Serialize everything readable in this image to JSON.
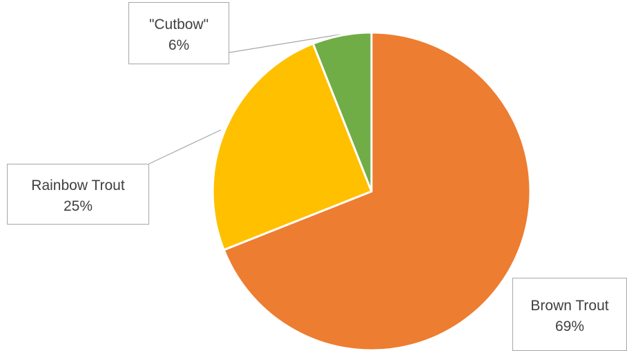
{
  "chart_data": {
    "type": "pie",
    "title": "",
    "start_angle_deg": 0,
    "direction": "clockwise",
    "slice_border_color": "#ffffff",
    "slices": [
      {
        "label": "Brown Trout",
        "value": 69,
        "value_label": "69%",
        "color": "#ED7D31"
      },
      {
        "label": "Rainbow Trout",
        "value": 25,
        "value_label": "25%",
        "color": "#FFC000"
      },
      {
        "label": "\"Cutbow\"",
        "value": 6,
        "value_label": "6%",
        "color": "#70AD47"
      }
    ],
    "legend": "none",
    "data_labels": "callouts"
  }
}
